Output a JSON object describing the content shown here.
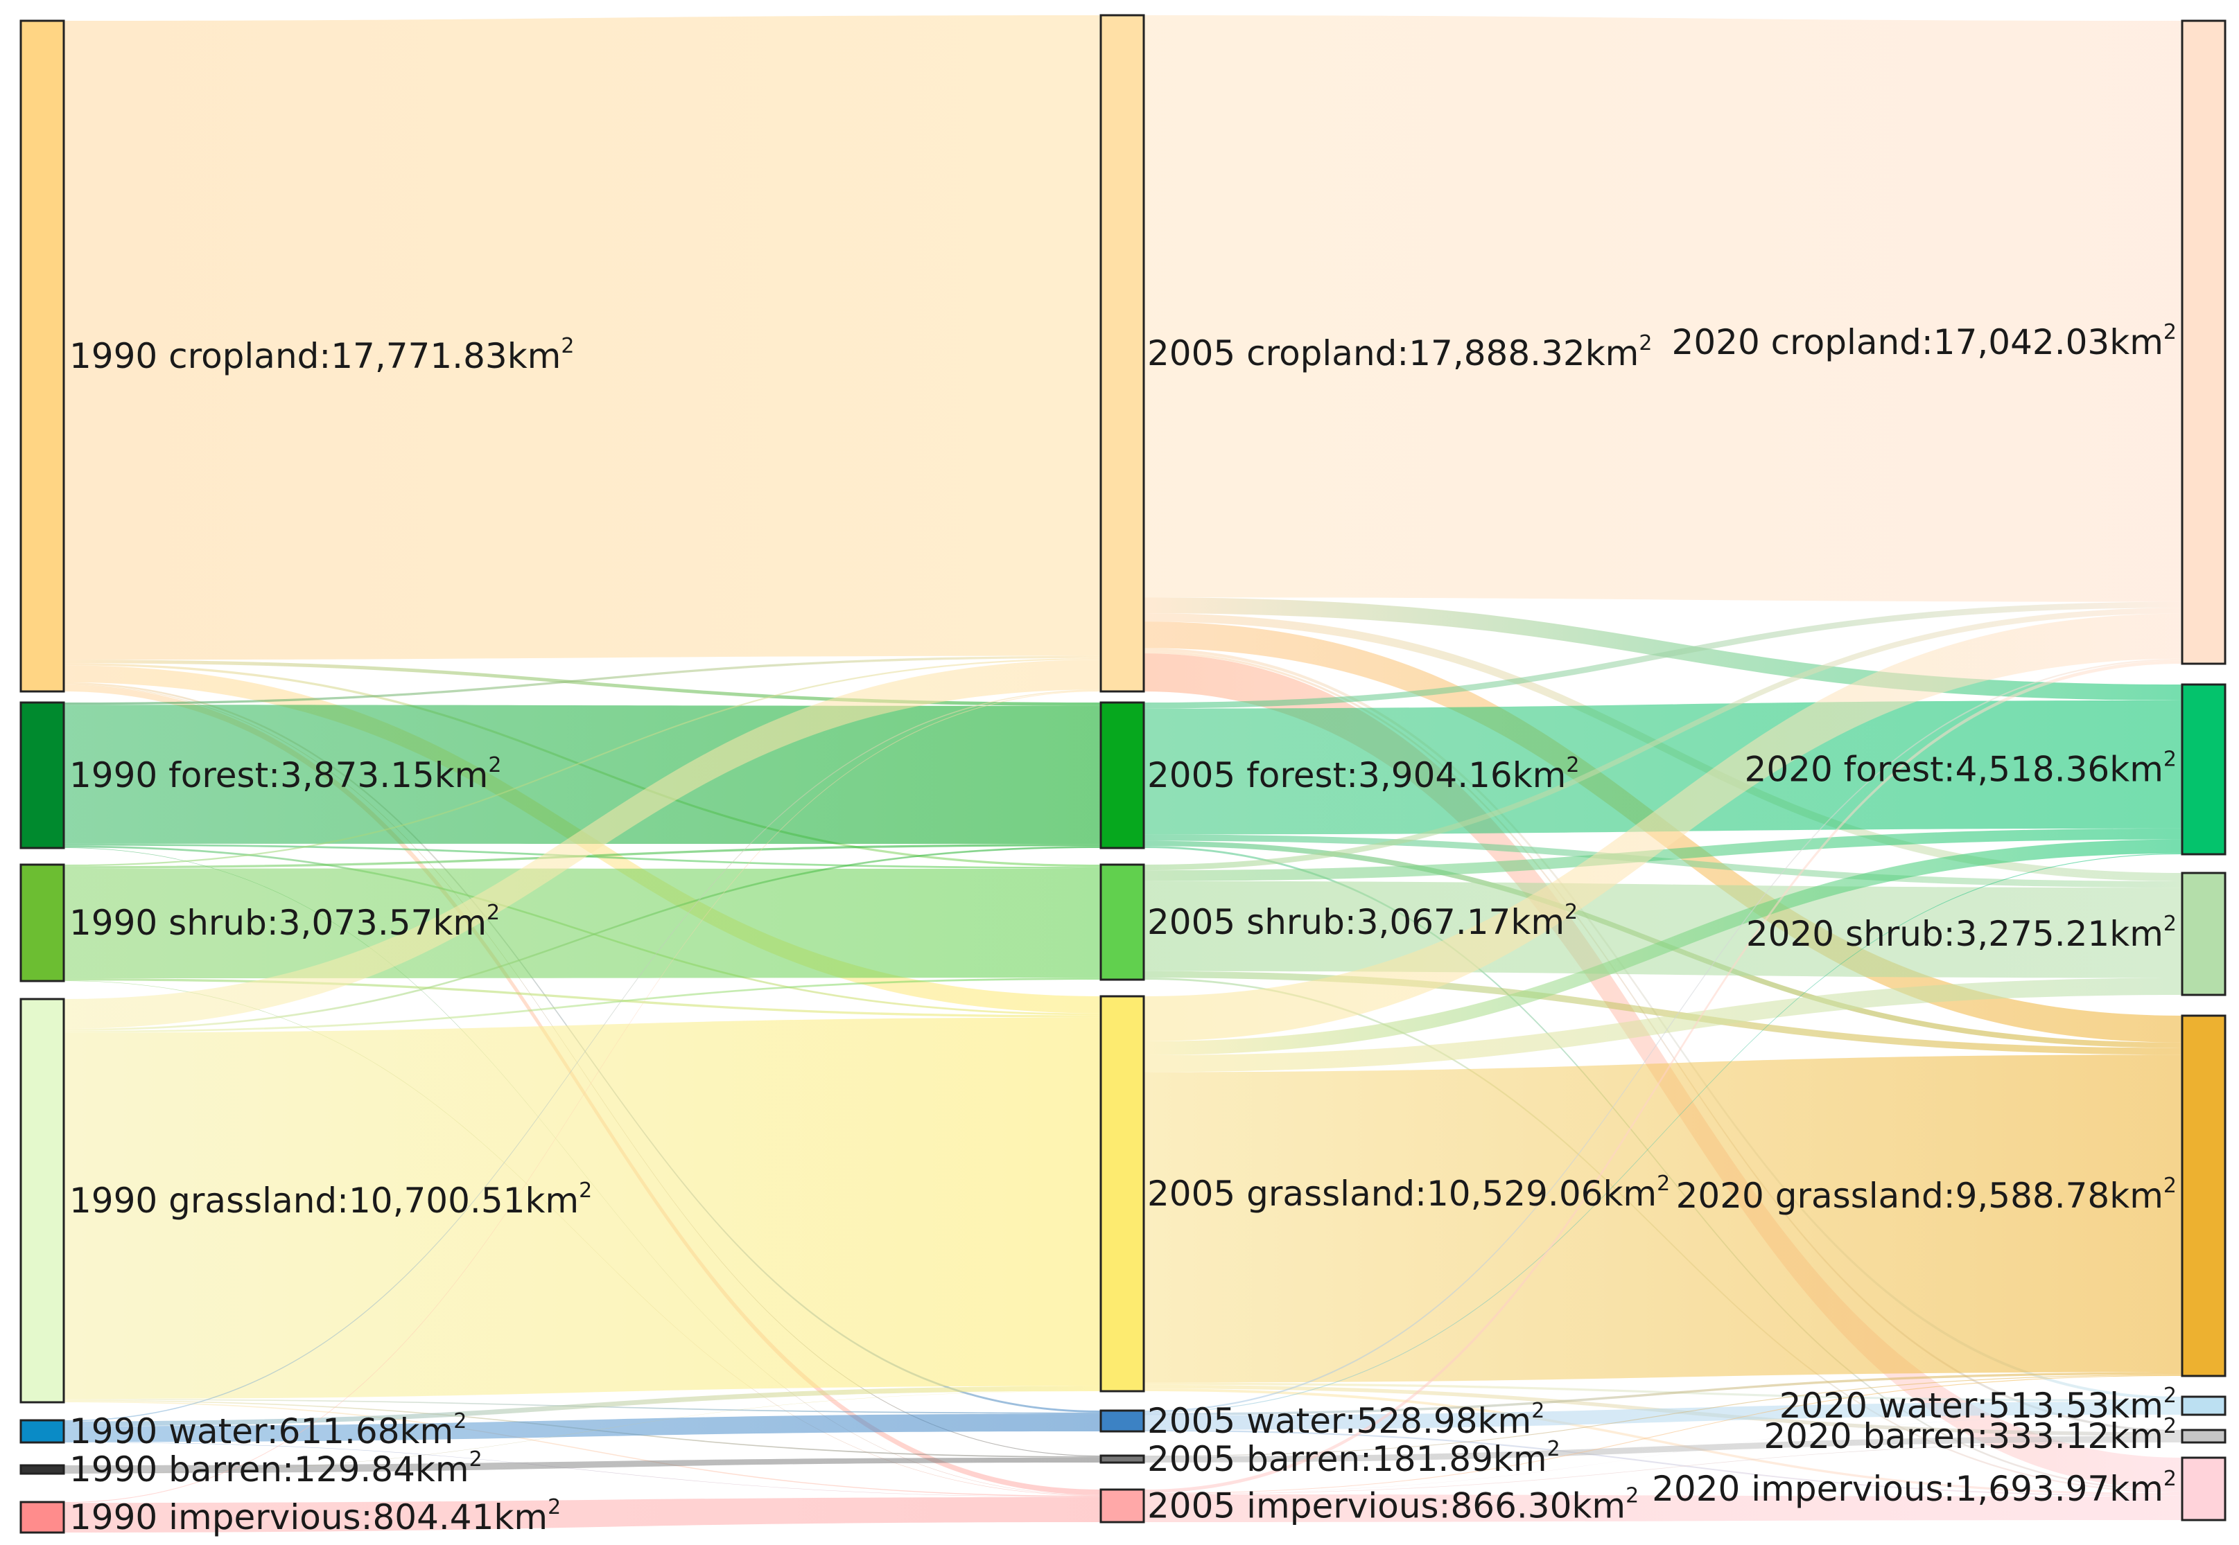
{
  "chart_data": {
    "type": "sankey",
    "unit": "km",
    "unit_superscript": "2",
    "years": [
      "1990",
      "2005",
      "2020"
    ],
    "nodes": {
      "1990": [
        {
          "id": "c90",
          "class": "cropland",
          "value": "17,771.83",
          "color": "#FFD584"
        },
        {
          "id": "f90",
          "class": "forest",
          "value": "3,873.15",
          "color": "#008A2E"
        },
        {
          "id": "s90",
          "class": "shrub",
          "value": "3,073.57",
          "color": "#6CBE32"
        },
        {
          "id": "g90",
          "class": "grassland",
          "value": "10,700.51",
          "color": "#E4F9CC"
        },
        {
          "id": "w90",
          "class": "water",
          "value": "611.68",
          "color": "#0A8BC6"
        },
        {
          "id": "b90",
          "class": "barren",
          "value": "129.84",
          "color": "#333333"
        },
        {
          "id": "i90",
          "class": "impervious",
          "value": "804.41",
          "color": "#FF8C8C"
        }
      ],
      "2005": [
        {
          "id": "c05",
          "class": "cropland",
          "value": "17,888.32",
          "color": "#FFE0A6"
        },
        {
          "id": "f05",
          "class": "forest",
          "value": "3,904.16",
          "color": "#06A81E"
        },
        {
          "id": "s05",
          "class": "shrub",
          "value": "3,067.17",
          "color": "#61D04E"
        },
        {
          "id": "g05",
          "class": "grassland",
          "value": "10,529.06",
          "color": "#FDEB70"
        },
        {
          "id": "w05",
          "class": "water",
          "value": "528.98",
          "color": "#3C82C4"
        },
        {
          "id": "b05",
          "class": "barren",
          "value": "181.89",
          "color": "#777777"
        },
        {
          "id": "i05",
          "class": "impervious",
          "value": "866.30",
          "color": "#FFA8A8"
        }
      ],
      "2020": [
        {
          "id": "c20",
          "class": "cropland",
          "value": "17,042.03",
          "color": "#FFE1CC"
        },
        {
          "id": "f20",
          "class": "forest",
          "value": "4,518.36",
          "color": "#04C36C"
        },
        {
          "id": "s20",
          "class": "shrub",
          "value": "3,275.21",
          "color": "#B4DEAA"
        },
        {
          "id": "g20",
          "class": "grassland",
          "value": "9,588.78",
          "color": "#EDB130"
        },
        {
          "id": "w20",
          "class": "water",
          "value": "513.53",
          "color": "#BCE0F2"
        },
        {
          "id": "b20",
          "class": "barren",
          "value": "333.12",
          "color": "#C6C6C6"
        },
        {
          "id": "i20",
          "class": "impervious",
          "value": "1,693.97",
          "color": "#FFD3DA"
        }
      ]
    },
    "links": [
      {
        "source": "c90",
        "target": "c05",
        "value": 16930,
        "color": "#FFD9A0"
      },
      {
        "source": "c90",
        "target": "f05",
        "value": 90,
        "color": "#FFD9A0"
      },
      {
        "source": "c90",
        "target": "s05",
        "value": 60,
        "color": "#FFD9A0"
      },
      {
        "source": "c90",
        "target": "g05",
        "value": 450,
        "color": "#FFD9A0"
      },
      {
        "source": "c90",
        "target": "w05",
        "value": 50,
        "color": "#FFD9A0"
      },
      {
        "source": "c90",
        "target": "b05",
        "value": 20,
        "color": "#FFD9A0"
      },
      {
        "source": "c90",
        "target": "i05",
        "value": 170,
        "color": "#FFD9A0"
      },
      {
        "source": "f90",
        "target": "c05",
        "value": 60,
        "color": "#2F9E52"
      },
      {
        "source": "f90",
        "target": "f05",
        "value": 3700,
        "color": "#32B760"
      },
      {
        "source": "f90",
        "target": "s05",
        "value": 50,
        "color": "#32B760"
      },
      {
        "source": "f90",
        "target": "g05",
        "value": 50,
        "color": "#32B760"
      },
      {
        "source": "f90",
        "target": "i05",
        "value": 13,
        "color": "#32B760"
      },
      {
        "source": "s90",
        "target": "c05",
        "value": 40,
        "color": "#86D46A"
      },
      {
        "source": "s90",
        "target": "f05",
        "value": 60,
        "color": "#86D46A"
      },
      {
        "source": "s90",
        "target": "s05",
        "value": 2900,
        "color": "#86D46A"
      },
      {
        "source": "s90",
        "target": "g05",
        "value": 60,
        "color": "#86D46A"
      },
      {
        "source": "s90",
        "target": "i05",
        "value": 13,
        "color": "#86D46A"
      },
      {
        "source": "g90",
        "target": "c05",
        "value": 790,
        "color": "#F8F0B0"
      },
      {
        "source": "g90",
        "target": "f05",
        "value": 50,
        "color": "#F8F0B0"
      },
      {
        "source": "g90",
        "target": "s05",
        "value": 50,
        "color": "#F8F0B0"
      },
      {
        "source": "g90",
        "target": "g05",
        "value": 9720,
        "color": "#F6EFA8"
      },
      {
        "source": "g90",
        "target": "w05",
        "value": 30,
        "color": "#F8F0B0"
      },
      {
        "source": "g90",
        "target": "b05",
        "value": 30,
        "color": "#F8F0B0"
      },
      {
        "source": "g90",
        "target": "i05",
        "value": 30,
        "color": "#F8F0B0"
      },
      {
        "source": "w90",
        "target": "c05",
        "value": 30,
        "color": "#6FA9DA"
      },
      {
        "source": "w90",
        "target": "g05",
        "value": 130,
        "color": "#6FA9DA"
      },
      {
        "source": "w90",
        "target": "w05",
        "value": 440,
        "color": "#6FA9DA"
      },
      {
        "source": "w90",
        "target": "i05",
        "value": 11,
        "color": "#6FA9DA"
      },
      {
        "source": "b90",
        "target": "b05",
        "value": 125,
        "color": "#9A9A9A"
      },
      {
        "source": "b90",
        "target": "g05",
        "value": 5,
        "color": "#9A9A9A"
      },
      {
        "source": "i90",
        "target": "c05",
        "value": 20,
        "color": "#FFB6B6"
      },
      {
        "source": "i90",
        "target": "i05",
        "value": 784,
        "color": "#FFB6B6"
      },
      {
        "source": "c05",
        "target": "c20",
        "value": 15400,
        "color": "#FFE6C4"
      },
      {
        "source": "c05",
        "target": "f20",
        "value": 420,
        "color": "#FFD9B0"
      },
      {
        "source": "c05",
        "target": "s20",
        "value": 220,
        "color": "#FFD9B0"
      },
      {
        "source": "c05",
        "target": "g20",
        "value": 700,
        "color": "#FFC88A"
      },
      {
        "source": "c05",
        "target": "w20",
        "value": 80,
        "color": "#FFD9B0"
      },
      {
        "source": "c05",
        "target": "b20",
        "value": 60,
        "color": "#FFD9B0"
      },
      {
        "source": "c05",
        "target": "i20",
        "value": 1008,
        "color": "#FFB08A"
      },
      {
        "source": "f05",
        "target": "c20",
        "value": 160,
        "color": "#3CC47C"
      },
      {
        "source": "f05",
        "target": "f20",
        "value": 3380,
        "color": "#35C67A"
      },
      {
        "source": "f05",
        "target": "s20",
        "value": 170,
        "color": "#3CC47C"
      },
      {
        "source": "f05",
        "target": "g20",
        "value": 140,
        "color": "#3CC47C"
      },
      {
        "source": "f05",
        "target": "i20",
        "value": 54,
        "color": "#3CC47C"
      },
      {
        "source": "s05",
        "target": "c20",
        "value": 150,
        "color": "#9ED68E"
      },
      {
        "source": "s05",
        "target": "f20",
        "value": 290,
        "color": "#9ED68E"
      },
      {
        "source": "s05",
        "target": "s20",
        "value": 2400,
        "color": "#A6DA98"
      },
      {
        "source": "s05",
        "target": "g20",
        "value": 177,
        "color": "#9ED68E"
      },
      {
        "source": "s05",
        "target": "i20",
        "value": 50,
        "color": "#9ED68E"
      },
      {
        "source": "g05",
        "target": "c20",
        "value": 1200,
        "color": "#FBE89A"
      },
      {
        "source": "g05",
        "target": "f20",
        "value": 370,
        "color": "#FBE89A"
      },
      {
        "source": "g05",
        "target": "s20",
        "value": 450,
        "color": "#FBE89A"
      },
      {
        "source": "g05",
        "target": "g20",
        "value": 8280,
        "color": "#F8E08C"
      },
      {
        "source": "g05",
        "target": "w20",
        "value": 60,
        "color": "#FBE89A"
      },
      {
        "source": "g05",
        "target": "b20",
        "value": 100,
        "color": "#FBE89A"
      },
      {
        "source": "g05",
        "target": "i20",
        "value": 69,
        "color": "#FBE89A"
      },
      {
        "source": "w05",
        "target": "c20",
        "value": 40,
        "color": "#9CC4E6"
      },
      {
        "source": "w05",
        "target": "f20",
        "value": 20,
        "color": "#9CC4E6"
      },
      {
        "source": "w05",
        "target": "g20",
        "value": 60,
        "color": "#9CC4E6"
      },
      {
        "source": "w05",
        "target": "w20",
        "value": 370,
        "color": "#AED0EC"
      },
      {
        "source": "w05",
        "target": "i20",
        "value": 39,
        "color": "#9CC4E6"
      },
      {
        "source": "b05",
        "target": "g20",
        "value": 20,
        "color": "#B4B4B4"
      },
      {
        "source": "b05",
        "target": "b20",
        "value": 160,
        "color": "#B4B4B4"
      },
      {
        "source": "i05",
        "target": "c20",
        "value": 90,
        "color": "#FFC4C4"
      },
      {
        "source": "i05",
        "target": "g20",
        "value": 20,
        "color": "#FFC4C4"
      },
      {
        "source": "i05",
        "target": "w20",
        "value": 4,
        "color": "#FFC4C4"
      },
      {
        "source": "i05",
        "target": "b20",
        "value": 13,
        "color": "#FFC4C4"
      },
      {
        "source": "i05",
        "target": "i20",
        "value": 740,
        "color": "#FFC4C4"
      }
    ]
  }
}
